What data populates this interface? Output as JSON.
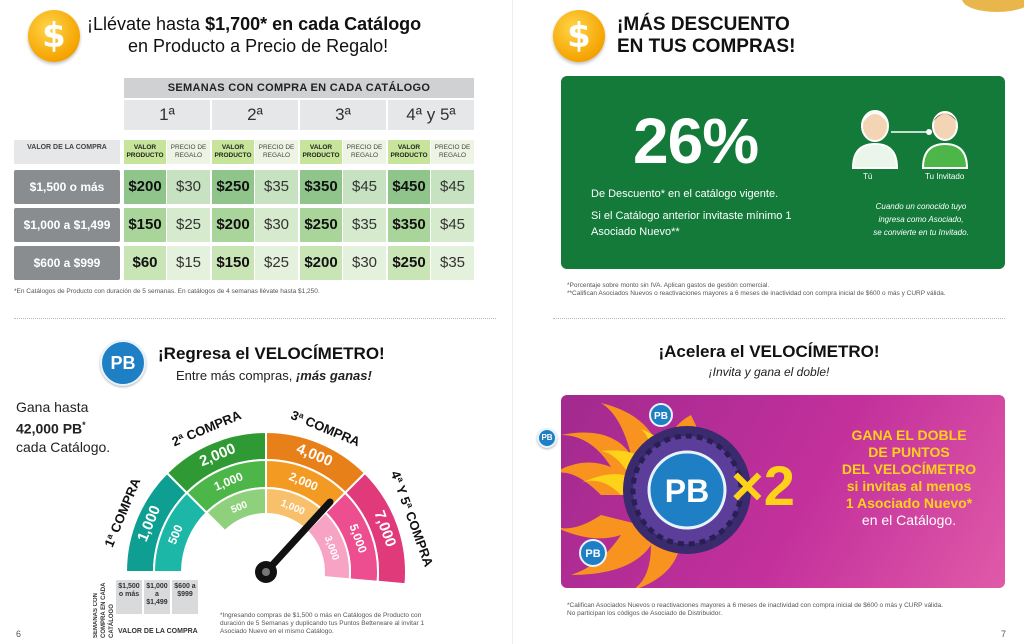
{
  "left": {
    "header": {
      "line1_prefix": "¡Llévate hasta ",
      "line1_bold": "$1,700* en cada Catálogo",
      "line2": "en Producto a Precio de Regalo!"
    },
    "table": {
      "title": "SEMANAS CON COMPRA EN CADA CATÁLOGO",
      "weeks": [
        "1ª",
        "2ª",
        "3ª",
        "4ª y 5ª"
      ],
      "valor_header": "VALOR DE LA COMPRA",
      "valor_producto": "VALOR PRODUCTO",
      "precio_regalo": "PRECIO DE REGALO",
      "rows": [
        {
          "label": "$1,500 o más",
          "cells": [
            [
              "$200",
              "$30"
            ],
            [
              "$250",
              "$35"
            ],
            [
              "$350",
              "$45"
            ],
            [
              "$450",
              "$45"
            ]
          ]
        },
        {
          "label": "$1,000 a $1,499",
          "cells": [
            [
              "$150",
              "$25"
            ],
            [
              "$200",
              "$30"
            ],
            [
              "$250",
              "$35"
            ],
            [
              "$350",
              "$45"
            ]
          ]
        },
        {
          "label": "$600 a $999",
          "cells": [
            [
              "$60",
              "$15"
            ],
            [
              "$150",
              "$25"
            ],
            [
              "$200",
              "$30"
            ],
            [
              "$250",
              "$35"
            ]
          ]
        }
      ],
      "footnote": "*En Catálogos de Producto con duración de 5 semanas. En catálogos de 4 semanas llévate hasta $1,250."
    },
    "velocimetro": {
      "badge": "PB",
      "title": "¡Regresa el VELOCÍMETRO!",
      "subtitle_prefix": "Entre más compras, ",
      "subtitle_italic": "¡más ganas!",
      "gana_line1": "Gana hasta",
      "gana_line2": "42,000 PB",
      "gana_sup": "*",
      "gana_line3": "cada Catálogo.",
      "segments": [
        {
          "label": "1ª COMPRA",
          "values": [
            "1,000",
            "500"
          ]
        },
        {
          "label": "2ª COMPRA",
          "values": [
            "2,000",
            "1,000",
            "500"
          ]
        },
        {
          "label": "3ª COMPRA",
          "values": [
            "4,000",
            "2,000",
            "1,000"
          ]
        },
        {
          "label": "4ª Y 5ª COMPRA",
          "values": [
            "7,000",
            "5,000",
            "3,000"
          ]
        }
      ],
      "y_label": "SEMANAS CON COMPRA EN CADA CATÁLOGO",
      "x_label": "VALOR DE LA COMPRA",
      "legend_values": [
        "$1,500 o más",
        "$1,000 a $1,499",
        "$600 a $999"
      ],
      "footnote": "*Ingresando compras de $1,500 o más en Catálogos de Producto con duración de 5 Semanas y duplicando tus Puntos Betterware al invitar 1 Asociado Nuevo en el mismo Catálogo."
    },
    "page_number": "6"
  },
  "right": {
    "header": {
      "line1": "¡MÁS DESCUENTO",
      "line2": "EN TUS COMPRAS!"
    },
    "descuento": {
      "percent": "26%",
      "line1": "De Descuento* en el catálogo vigente.",
      "line2": "Si el Catálogo anterior invitaste mínimo 1",
      "line3": "Asociado Nuevo**",
      "tu": "Tú",
      "invitado": "Tu Invitado",
      "note1": "Cuando un conocido tuyo",
      "note2": "ingresa como Asociado,",
      "note3": "se convierte en tu Invitado."
    },
    "footnotes1": [
      "*Porcentaje sobre monto sin IVA. Aplican gastos de gestión comercial.",
      "**Califican Asociados Nuevos o reactivaciones mayores a 6 meses de inactividad con compra inicial de $600 o más y CURP válida."
    ],
    "acelera": {
      "title": "¡Acelera el VELOCÍMETRO!",
      "subtitle": "¡Invita y gana el doble!",
      "badge": "PB",
      "multiplier": "×2",
      "promo_lines": [
        "GANA EL DOBLE",
        "DE PUNTOS",
        "DEL VELOCÍMETRO"
      ],
      "promo_line4": "si invitas al menos",
      "promo_line5": "1 Asociado Nuevo*",
      "promo_line6": "en el Catálogo."
    },
    "footnotes2": [
      "*Califican Asociados Nuevos o reactivaciones mayores a 6 meses de inactividad con compra inicial de $600 o más y CURP válida.",
      "No participan los códigos de Asociado de Distribuidor."
    ],
    "page_number": "7"
  },
  "colors": {
    "green_dark": "#137a3a",
    "gold": "#f5a300",
    "pb_blue": "#1f7fc4",
    "teal": "#1cb7a6",
    "green": "#4cb748",
    "orange": "#f39a23",
    "pink": "#ec4e8f",
    "promo_yellow": "#ffd21a"
  }
}
